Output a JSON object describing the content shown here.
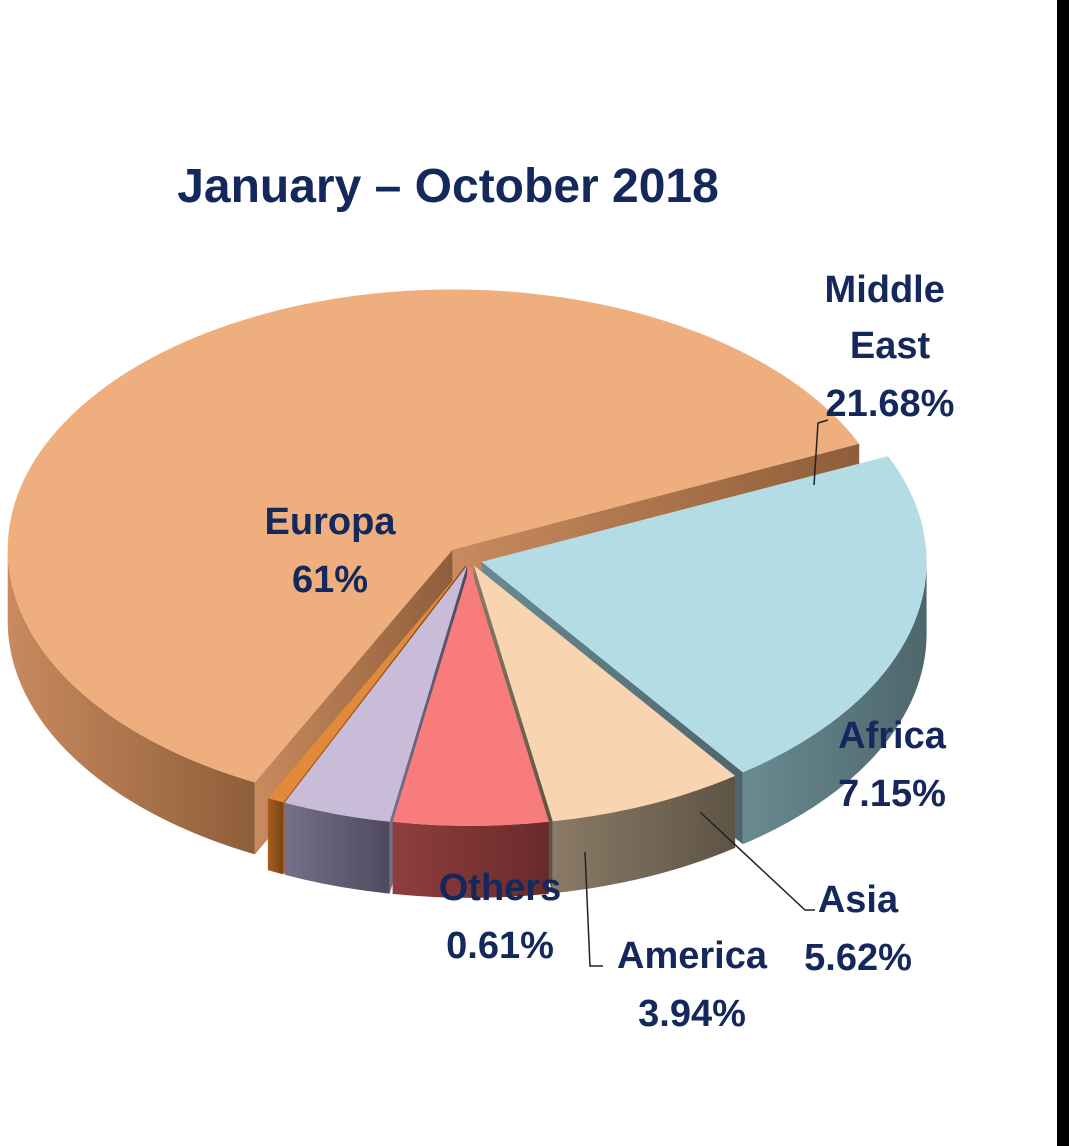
{
  "colors": {
    "text": "#14285c",
    "europa": "#eeae7d",
    "middle_east": "#b4dce4",
    "africa": "#f8d4b0",
    "asia": "#f87c7c",
    "america": "#c8bcd8",
    "others": "#e08a3a",
    "right_bar": "#000000"
  },
  "chart_data": {
    "type": "pie",
    "title": "January – October 2018",
    "exploded": true,
    "three_d": true,
    "slices": [
      {
        "key": "europa",
        "label": "Europa",
        "value": 61,
        "display": "61%"
      },
      {
        "key": "middle_east",
        "label": "Middle East",
        "label_lines": [
          "Middle",
          "East"
        ],
        "value": 21.68,
        "display": "21.68%"
      },
      {
        "key": "africa",
        "label": "Africa",
        "value": 7.15,
        "display": "7.15%"
      },
      {
        "key": "asia",
        "label": "Asia",
        "value": 5.62,
        "display": "5.62%"
      },
      {
        "key": "america",
        "label": "America",
        "value": 3.94,
        "display": "3.94%"
      },
      {
        "key": "others",
        "label": "Others",
        "value": 0.61,
        "display": "0.61%"
      }
    ]
  }
}
